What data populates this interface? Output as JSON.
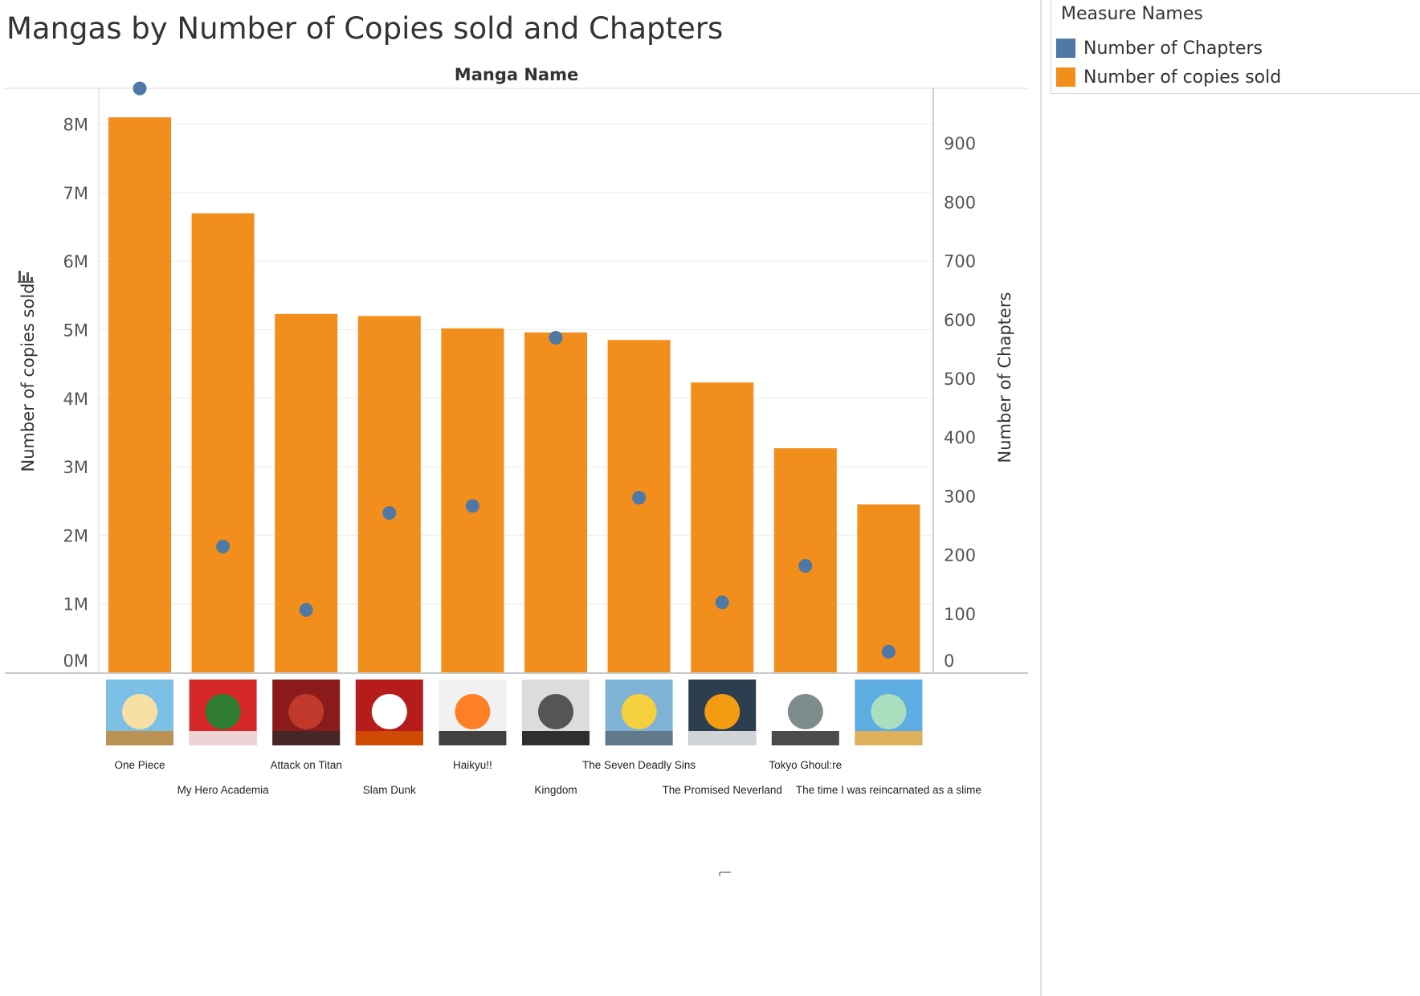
{
  "title": "Mangas by Number of Copies sold and Chapters",
  "legend": {
    "title": "Measure Names",
    "items": [
      {
        "label": "Number of Chapters",
        "color": "#4e79a7"
      },
      {
        "label": "Number of copies sold",
        "color": "#f28e1c"
      }
    ]
  },
  "chart_data": {
    "type": "bar",
    "title": "Mangas by Number of Copies sold and Chapters",
    "xlabel": "Manga Name",
    "ylabel": "Number of copies sold",
    "y2label": "Number of Chapters",
    "ylim": [
      0,
      8200000
    ],
    "y2lim": [
      0,
      1000
    ],
    "yticks": [
      "0M",
      "1M",
      "2M",
      "3M",
      "4M",
      "5M",
      "6M",
      "7M",
      "8M"
    ],
    "y2ticks": [
      "0",
      "100",
      "200",
      "300",
      "400",
      "500",
      "600",
      "700",
      "800",
      "900"
    ],
    "categories": [
      "One Piece",
      "My Hero Academia",
      "Attack on Titan",
      "Slam Dunk",
      "Haikyu!!",
      "Kingdom",
      "The Seven Deadly Sins",
      "The Promised Neverland",
      "Tokyo Ghoul:re",
      "The time I was reincarnated as a slime"
    ],
    "series": [
      {
        "name": "Number of copies sold",
        "axis": "left",
        "mark": "bar",
        "color": "#f28e1c",
        "values": [
          8100000,
          6700000,
          5230000,
          5200000,
          5020000,
          4960000,
          4850000,
          4230000,
          3270000,
          2450000
        ]
      },
      {
        "name": "Number of Chapters",
        "axis": "right",
        "mark": "circle",
        "color": "#4e79a7",
        "values": [
          993,
          214,
          106,
          271,
          283,
          569,
          297,
          119,
          181,
          35
        ]
      }
    ],
    "grid": true,
    "legend_position": "top-right"
  }
}
